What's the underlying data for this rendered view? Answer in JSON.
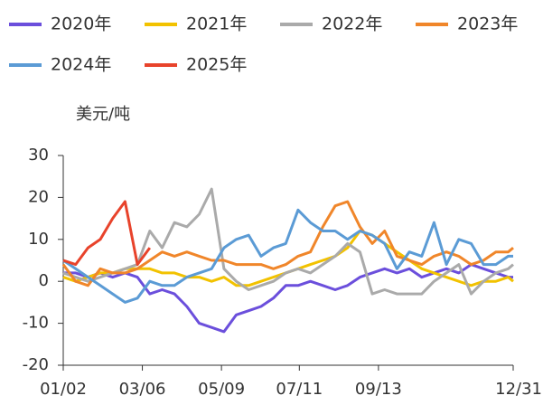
{
  "chart_data": {
    "type": "line",
    "y_axis_label": "美元/吨",
    "x": [
      0,
      10,
      20,
      30,
      40,
      50,
      60,
      70,
      80,
      90,
      100,
      110,
      120,
      130,
      140,
      150,
      160,
      170,
      180,
      190,
      200,
      210,
      220,
      230,
      240,
      250,
      260,
      270,
      280,
      290,
      300,
      310,
      320,
      330,
      340,
      350,
      360,
      364
    ],
    "xlim": [
      0,
      364
    ],
    "xticks": [
      {
        "value": 0,
        "label": "01/02"
      },
      {
        "value": 64,
        "label": "03/06"
      },
      {
        "value": 128,
        "label": "05/09"
      },
      {
        "value": 191,
        "label": "07/11"
      },
      {
        "value": 255,
        "label": "09/13"
      },
      {
        "value": 364,
        "label": "12/31"
      }
    ],
    "ylim": [
      -20,
      30
    ],
    "yticks": [
      -20,
      -10,
      0,
      10,
      20,
      30
    ],
    "grid": false,
    "legend": "top",
    "series": [
      {
        "name": "2020年",
        "color": "#6b4fdc",
        "values": [
          2,
          2,
          1,
          2,
          1,
          2,
          1,
          -3,
          -2,
          -3,
          -6,
          -10,
          -11,
          -12,
          -8,
          -7,
          -6,
          -4,
          -1,
          -1,
          0,
          -1,
          -2,
          -1,
          1,
          2,
          3,
          2,
          3,
          1,
          2,
          3,
          2,
          4,
          3,
          2,
          1,
          1
        ]
      },
      {
        "name": "2021年",
        "color": "#f2c200",
        "values": [
          1,
          0,
          1,
          2,
          2,
          3,
          3,
          3,
          2,
          2,
          1,
          1,
          0,
          1,
          -1,
          -1,
          0,
          1,
          2,
          3,
          4,
          5,
          6,
          8,
          12,
          11,
          9,
          7,
          5,
          3,
          2,
          1,
          0,
          -1,
          0,
          0,
          1,
          0
        ]
      },
      {
        "name": "2022年",
        "color": "#aaaaaa",
        "values": [
          2,
          1,
          0,
          1,
          2,
          3,
          4,
          12,
          8,
          14,
          13,
          16,
          22,
          3,
          0,
          -2,
          -1,
          0,
          2,
          3,
          2,
          4,
          6,
          9,
          7,
          -3,
          -2,
          -3,
          -3,
          -3,
          0,
          2,
          4,
          -3,
          0,
          2,
          3,
          4
        ]
      },
      {
        "name": "2023年",
        "color": "#f0862a",
        "values": [
          4,
          0,
          -1,
          3,
          2,
          2,
          3,
          5,
          7,
          6,
          7,
          6,
          5,
          5,
          4,
          4,
          4,
          3,
          4,
          6,
          7,
          13,
          18,
          19,
          13,
          9,
          12,
          6,
          5,
          4,
          6,
          7,
          6,
          4,
          5,
          7,
          7,
          8
        ]
      },
      {
        "name": "2024年",
        "color": "#5b9bd5",
        "values": [
          5,
          3,
          1,
          -1,
          -3,
          -5,
          -4,
          0,
          -1,
          -1,
          1,
          2,
          3,
          8,
          10,
          11,
          6,
          8,
          9,
          17,
          14,
          12,
          12,
          10,
          12,
          11,
          9,
          3,
          7,
          6,
          14,
          4,
          10,
          9,
          4,
          4,
          6,
          6
        ]
      },
      {
        "name": "2025年",
        "color": "#e8432b",
        "values": [
          5,
          4,
          8,
          10,
          15,
          19,
          4,
          8,
          null,
          null,
          null,
          null,
          null,
          null,
          null,
          null,
          null,
          null,
          null,
          null,
          null,
          null,
          null,
          null,
          null,
          null,
          null,
          null,
          null,
          null,
          null,
          null,
          null,
          null,
          null,
          null,
          null,
          null
        ]
      }
    ]
  }
}
